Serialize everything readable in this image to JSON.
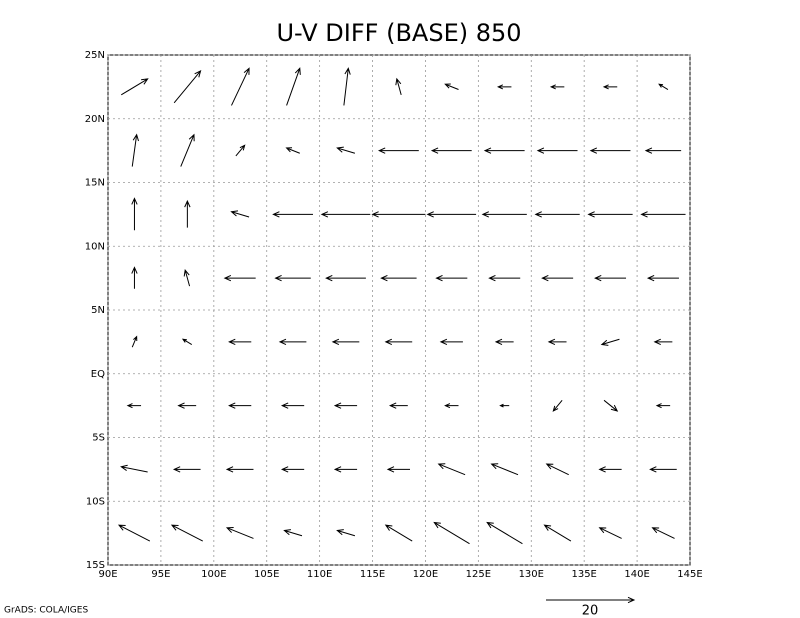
{
  "chart_data": {
    "type": "vector",
    "title": "U-V DIFF (BASE) 850",
    "footer": "GrADS: COLA/IGES",
    "xlim": [
      90,
      145
    ],
    "ylim": [
      -15,
      25
    ],
    "xticks": [
      {
        "value": 90,
        "label": "90E"
      },
      {
        "value": 95,
        "label": "95E"
      },
      {
        "value": 100,
        "label": "100E"
      },
      {
        "value": 105,
        "label": "105E"
      },
      {
        "value": 110,
        "label": "110E"
      },
      {
        "value": 115,
        "label": "115E"
      },
      {
        "value": 120,
        "label": "120E"
      },
      {
        "value": 125,
        "label": "125E"
      },
      {
        "value": 130,
        "label": "130E"
      },
      {
        "value": 135,
        "label": "135E"
      },
      {
        "value": 140,
        "label": "140E"
      },
      {
        "value": 145,
        "label": "145E"
      }
    ],
    "yticks": [
      {
        "value": -15,
        "label": "15S"
      },
      {
        "value": -10,
        "label": "10S"
      },
      {
        "value": -5,
        "label": "5S"
      },
      {
        "value": 0,
        "label": "EQ"
      },
      {
        "value": 5,
        "label": "5N"
      },
      {
        "value": 10,
        "label": "10N"
      },
      {
        "value": 15,
        "label": "15N"
      },
      {
        "value": 20,
        "label": "20N"
      },
      {
        "value": 25,
        "label": "25N"
      }
    ],
    "grid": true,
    "reference_vector": 20,
    "lon": [
      92.5,
      97.5,
      102.5,
      107.5,
      112.5,
      117.5,
      122.5,
      127.5,
      132.5,
      137.5,
      142.5
    ],
    "lat": [
      -12.5,
      -7.5,
      -2.5,
      2.5,
      7.5,
      12.5,
      17.5,
      22.5
    ],
    "u": [
      [
        -7,
        -7,
        -6,
        -4,
        -4,
        -6,
        -8,
        -8,
        -6,
        -5,
        -5
      ],
      [
        -6,
        -6,
        -6,
        -5,
        -5,
        -5,
        -6,
        -6,
        -5,
        -5,
        -6
      ],
      [
        -3,
        -4,
        -5,
        -5,
        -5,
        -4,
        -3,
        -2,
        -2,
        3,
        -3
      ],
      [
        1,
        -2,
        -5,
        -6,
        -6,
        -6,
        -5,
        -4,
        -4,
        -4,
        -4
      ],
      [
        0,
        -1,
        -7,
        -8,
        -9,
        -8,
        -7,
        -7,
        -7,
        -7,
        -7
      ],
      [
        0,
        0,
        -4,
        -9,
        -11,
        -12,
        -11,
        -10,
        -10,
        -10,
        -10
      ],
      [
        1,
        3,
        2,
        -3,
        -4,
        -9,
        -9,
        -9,
        -9,
        -9,
        -8
      ],
      [
        6,
        6,
        4,
        3,
        1,
        -1,
        -3,
        -3,
        -3,
        -3,
        -2
      ]
    ],
    "v": [
      [
        3,
        3,
        2,
        1,
        1,
        3,
        4,
        4,
        3,
        2,
        2
      ],
      [
        1,
        0,
        0,
        0,
        0,
        0,
        2,
        2,
        2,
        0,
        0
      ],
      [
        0,
        0,
        0,
        0,
        0,
        0,
        0,
        0,
        -2,
        -2,
        0
      ],
      [
        2,
        1,
        0,
        0,
        0,
        0,
        0,
        0,
        0,
        -1,
        0
      ],
      [
        4,
        3,
        0,
        0,
        0,
        0,
        0,
        0,
        0,
        0,
        0
      ],
      [
        6,
        5,
        1,
        0,
        0,
        0,
        0,
        0,
        0,
        0,
        0
      ],
      [
        6,
        6,
        2,
        1,
        1,
        0,
        0,
        0,
        0,
        0,
        0
      ],
      [
        3,
        6,
        7,
        7,
        7,
        3,
        1,
        0,
        0,
        0,
        1
      ]
    ]
  }
}
